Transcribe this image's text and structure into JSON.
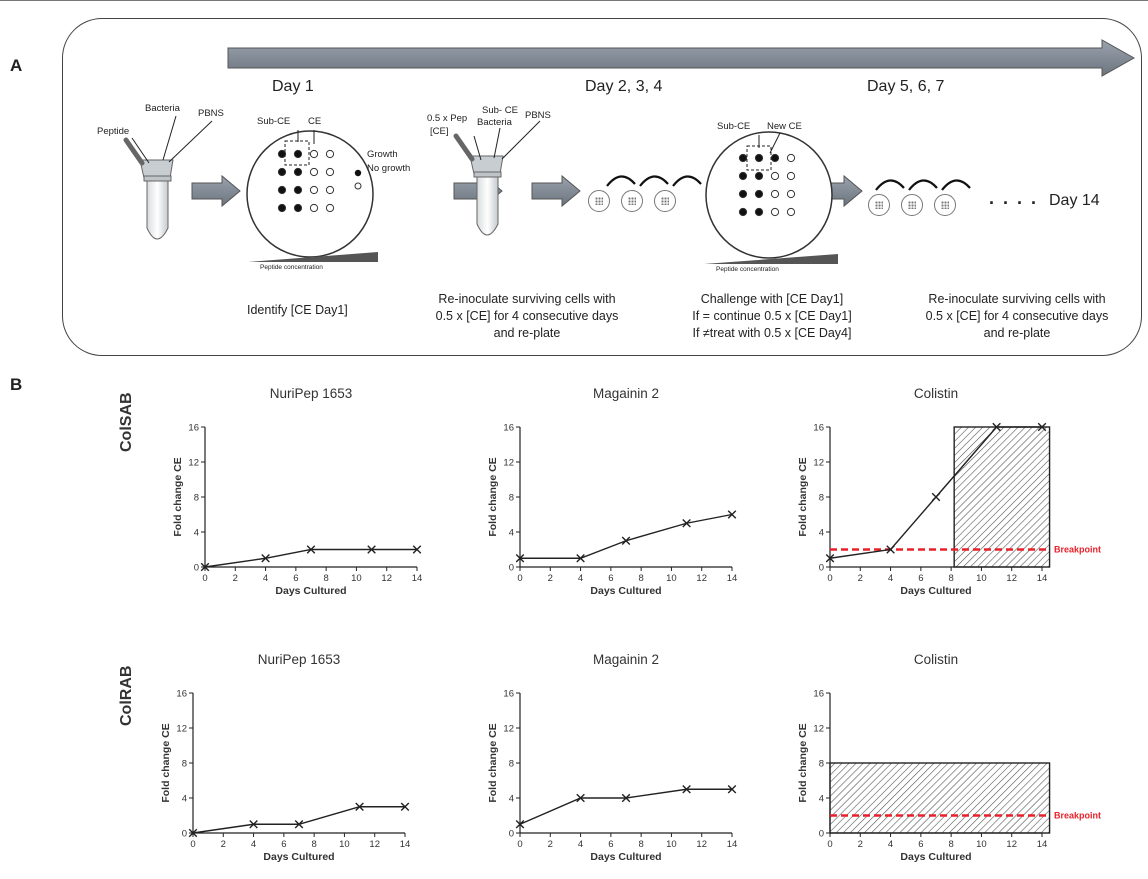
{
  "panel_labels": {
    "a": "A",
    "b": "B"
  },
  "panelA": {
    "days": {
      "d1": "Day 1",
      "d234": "Day 2, 3, 4",
      "d567": "Day 5, 6, 7",
      "d14": "Day 14"
    },
    "tube_labels": {
      "peptide": "Peptide",
      "bacteria": "Bacteria",
      "pbns": "PBNS"
    },
    "plate1_labels": {
      "subce": "Sub-CE",
      "ce": "CE",
      "growth": "Growth",
      "nogrowth": "No growth"
    },
    "tube2_labels": {
      "pep_line1": "0.5 x Pep",
      "pep_line2": "[CE]",
      "subce_line1": "Sub- CE",
      "bacteria": "Bacteria",
      "pbns": "PBNS"
    },
    "plate2_labels": {
      "subce": "Sub-CE",
      "newce": "New CE"
    },
    "peptide_concentration": "Peptide concentration",
    "dots": ". . . .",
    "captions": {
      "c1": "Identify [CE Day1]",
      "c2_line1": "Re-inoculate surviving cells with",
      "c2_line2": "0.5 x [CE] for 4 consecutive days",
      "c2_line3": "and re-plate",
      "c3_line1": "Challenge with [CE Day1]",
      "c3_line2": "If = continue 0.5 x [CE Day1]",
      "c3_line3": "If ≠treat with 0.5 x [CE Day4]",
      "c4_line1": "Re-inoculate surviving cells with",
      "c4_line2": "0.5 x [CE] for 4 consecutive days",
      "c4_line3": "and re-plate"
    }
  },
  "row_labels": {
    "row1": "ColSAB",
    "row2": "ColRAB"
  },
  "colors": {
    "line": "#222222",
    "breakpoint": "#e8202a",
    "hatch": "#555555"
  },
  "chart_data": [
    {
      "type": "line",
      "row": "ColSAB",
      "title": "NuriPep 1653",
      "xlabel": "Days Cultured",
      "ylabel": "Fold change CE",
      "x": [
        0,
        4,
        7,
        11,
        14
      ],
      "y": [
        0,
        1,
        2,
        2,
        2
      ],
      "xlim": [
        0,
        14
      ],
      "ylim": [
        0,
        16
      ],
      "xticks": [
        0,
        2,
        4,
        6,
        8,
        10,
        12,
        14
      ],
      "yticks": [
        0,
        4,
        8,
        12,
        16
      ]
    },
    {
      "type": "line",
      "row": "ColSAB",
      "title": "Magainin 2",
      "xlabel": "Days Cultured",
      "ylabel": "Fold change CE",
      "x": [
        0,
        4,
        7,
        11,
        14
      ],
      "y": [
        1,
        1,
        3,
        5,
        6
      ],
      "xlim": [
        0,
        14
      ],
      "ylim": [
        0,
        16
      ],
      "xticks": [
        0,
        2,
        4,
        6,
        8,
        10,
        12,
        14
      ],
      "yticks": [
        0,
        4,
        8,
        12,
        16
      ]
    },
    {
      "type": "line",
      "row": "ColSAB",
      "title": "Colistin",
      "xlabel": "Days Cultured",
      "ylabel": "Fold change CE",
      "x": [
        0,
        4,
        7,
        11,
        14
      ],
      "y": [
        1,
        2,
        8,
        16,
        16
      ],
      "xlim": [
        0,
        14
      ],
      "ylim": [
        0,
        16
      ],
      "xticks": [
        0,
        2,
        4,
        6,
        8,
        10,
        12,
        14
      ],
      "yticks": [
        0,
        4,
        8,
        12,
        16
      ],
      "breakpoint": 2,
      "breakpoint_label": "Breakpoint",
      "hatched_region": {
        "x": [
          8.2,
          14.5
        ],
        "y": [
          0,
          16
        ]
      }
    },
    {
      "type": "line",
      "row": "ColRAB",
      "title": "NuriPep 1653",
      "xlabel": "Days Cultured",
      "ylabel": "Fold change CE",
      "x": [
        0,
        4,
        7,
        11,
        14
      ],
      "y": [
        0,
        1,
        1,
        3,
        3
      ],
      "xlim": [
        0,
        14
      ],
      "ylim": [
        0,
        16
      ],
      "xticks": [
        0,
        2,
        4,
        6,
        8,
        10,
        12,
        14
      ],
      "yticks": [
        0,
        4,
        8,
        12,
        16
      ]
    },
    {
      "type": "line",
      "row": "ColRAB",
      "title": "Magainin 2",
      "xlabel": "Days Cultured",
      "ylabel": "Fold change CE",
      "x": [
        0,
        4,
        7,
        11,
        14
      ],
      "y": [
        1,
        4,
        4,
        5,
        5
      ],
      "xlim": [
        0,
        14
      ],
      "ylim": [
        0,
        16
      ],
      "xticks": [
        0,
        2,
        4,
        6,
        8,
        10,
        12,
        14
      ],
      "yticks": [
        0,
        4,
        8,
        12,
        16
      ]
    },
    {
      "type": "line",
      "row": "ColRAB",
      "title": "Colistin",
      "xlabel": "Days Cultured",
      "ylabel": "Fold change CE",
      "x": [],
      "y": [],
      "xlim": [
        0,
        14
      ],
      "ylim": [
        0,
        16
      ],
      "xticks": [
        0,
        2,
        4,
        6,
        8,
        10,
        12,
        14
      ],
      "yticks": [
        0,
        4,
        8,
        12,
        16
      ],
      "breakpoint": 2,
      "breakpoint_label": "Breakpoint",
      "hatched_region": {
        "x": [
          0,
          14.5
        ],
        "y": [
          0,
          8
        ]
      }
    }
  ]
}
